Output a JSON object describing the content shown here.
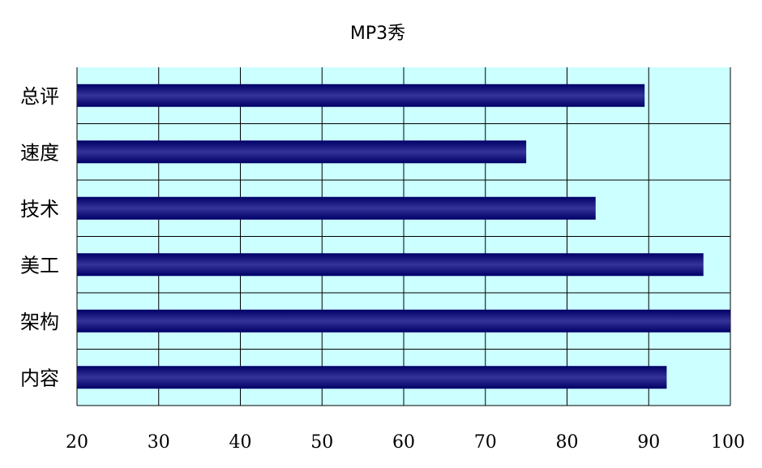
{
  "chart_data": {
    "type": "bar",
    "orientation": "horizontal",
    "title": "MP3秀",
    "xlabel": "",
    "ylabel": "",
    "categories": [
      "总评",
      "速度",
      "技术",
      "美工",
      "架构",
      "内容"
    ],
    "values": [
      89.5,
      75,
      83.5,
      96.7,
      100,
      92.2
    ],
    "xlim": [
      20,
      100
    ],
    "xticks": [
      "20",
      "30",
      "40",
      "50",
      "60",
      "70",
      "80",
      "90",
      "100"
    ],
    "grid": true,
    "legend": "none",
    "colors": {
      "plot_background": "#ccffff",
      "bar_dark": "#000066",
      "bar_light": "#33339a",
      "grid": "#000000"
    }
  }
}
